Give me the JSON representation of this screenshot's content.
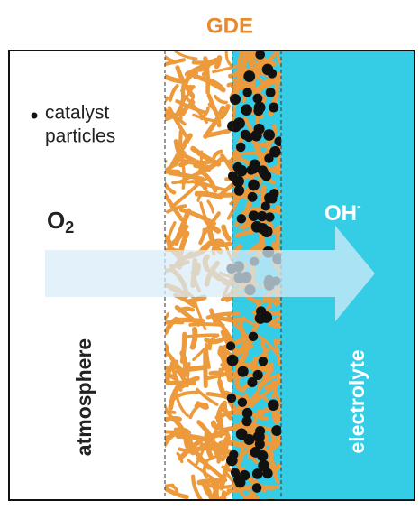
{
  "title": "GDE",
  "legend": {
    "lines": [
      "catalyst",
      "particles"
    ]
  },
  "reactant": {
    "text": "O",
    "subscript": "2"
  },
  "product": {
    "text": "OH",
    "superscript": "-"
  },
  "regions": {
    "left": "atmosphere",
    "right": "electrolyte"
  }
}
